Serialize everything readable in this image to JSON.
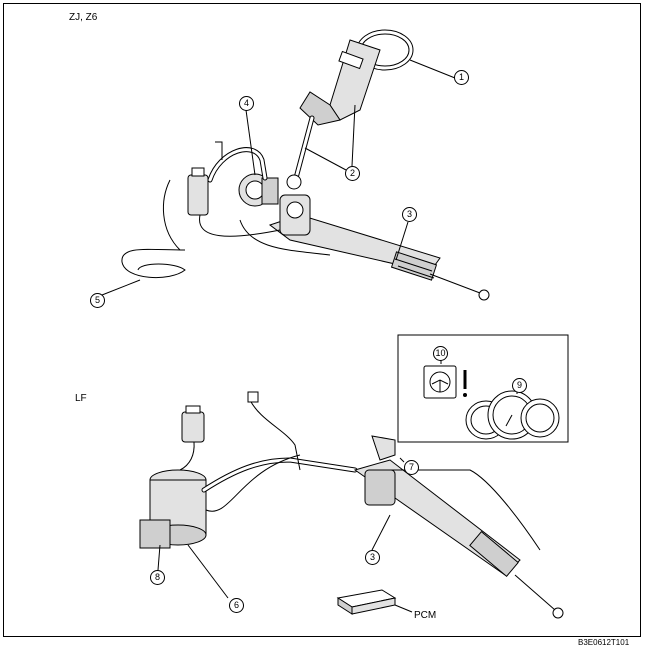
{
  "variants": {
    "upper": "ZJ, Z6",
    "lower": "LF"
  },
  "callouts": {
    "c1": "1",
    "c2": "2",
    "c3_upper": "3",
    "c4": "4",
    "c5": "5",
    "c6": "6",
    "c7": "7",
    "c3_lower": "3",
    "c8": "8",
    "c9": "9",
    "c10": "10"
  },
  "labels": {
    "pcm": "PCM",
    "figure_code": "B3E0612T101"
  }
}
